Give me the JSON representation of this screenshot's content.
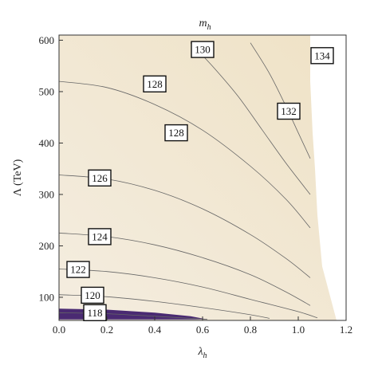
{
  "chart_data": {
    "type": "contour",
    "title": "m_h",
    "title_main": "m",
    "title_sub": "h",
    "xlabel_main": "λ",
    "xlabel_sub": "h",
    "ylabel": "Λ (TeV)",
    "xlim": [
      0.0,
      1.2
    ],
    "ylim": [
      55,
      610
    ],
    "x_ticks": [
      "0.0",
      "0.2",
      "0.4",
      "0.6",
      "0.8",
      "1.0",
      "1.2"
    ],
    "x_tick_values": [
      0.0,
      0.2,
      0.4,
      0.6,
      0.8,
      1.0,
      1.2
    ],
    "y_ticks": [
      "100",
      "200",
      "300",
      "400",
      "500",
      "600"
    ],
    "y_tick_values": [
      100,
      200,
      300,
      400,
      500,
      600
    ],
    "colors": {
      "background_light": "#f3ead9",
      "background_dark": "#efe0c2",
      "excluded_region": "#4a2a72",
      "contour_line": "#666666"
    },
    "contours": [
      {
        "label": "118",
        "points": [
          [
            0.0,
            70
          ],
          [
            0.2,
            68
          ],
          [
            0.4,
            63
          ],
          [
            0.55,
            59
          ],
          [
            0.62,
            57
          ]
        ]
      },
      {
        "label": "120",
        "points": [
          [
            0.0,
            105
          ],
          [
            0.2,
            101
          ],
          [
            0.4,
            92
          ],
          [
            0.6,
            80
          ],
          [
            0.8,
            66
          ],
          [
            0.88,
            59
          ]
        ]
      },
      {
        "label": "122",
        "points": [
          [
            0.0,
            155
          ],
          [
            0.2,
            150
          ],
          [
            0.4,
            138
          ],
          [
            0.6,
            120
          ],
          [
            0.8,
            96
          ],
          [
            1.0,
            72
          ],
          [
            1.08,
            60
          ]
        ]
      },
      {
        "label": "124",
        "points": [
          [
            0.0,
            225
          ],
          [
            0.2,
            218
          ],
          [
            0.4,
            202
          ],
          [
            0.6,
            177
          ],
          [
            0.8,
            144
          ],
          [
            0.95,
            110
          ],
          [
            1.05,
            84
          ]
        ]
      },
      {
        "label": "126",
        "points": [
          [
            0.0,
            338
          ],
          [
            0.2,
            330
          ],
          [
            0.4,
            308
          ],
          [
            0.6,
            272
          ],
          [
            0.8,
            222
          ],
          [
            0.95,
            175
          ],
          [
            1.05,
            138
          ]
        ]
      },
      {
        "label": "128",
        "points": [
          [
            0.0,
            520
          ],
          [
            0.2,
            508
          ],
          [
            0.4,
            475
          ],
          [
            0.6,
            425
          ],
          [
            0.8,
            355
          ],
          [
            0.95,
            290
          ],
          [
            1.05,
            235
          ]
        ]
      },
      {
        "label": "130",
        "points": [
          [
            0.55,
            595
          ],
          [
            0.65,
            545
          ],
          [
            0.75,
            490
          ],
          [
            0.85,
            425
          ],
          [
            0.95,
            360
          ],
          [
            1.05,
            300
          ]
        ]
      },
      {
        "label": "132",
        "points": [
          [
            0.8,
            595
          ],
          [
            0.88,
            535
          ],
          [
            0.95,
            470
          ],
          [
            1.0,
            420
          ],
          [
            1.05,
            370
          ]
        ]
      }
    ],
    "labels": [
      {
        "text": "118",
        "x": 0.15,
        "y": 70
      },
      {
        "text": "120",
        "x": 0.14,
        "y": 104
      },
      {
        "text": "122",
        "x": 0.08,
        "y": 154
      },
      {
        "text": "124",
        "x": 0.17,
        "y": 218
      },
      {
        "text": "126",
        "x": 0.17,
        "y": 332
      },
      {
        "text": "128",
        "x": 0.4,
        "y": 515
      },
      {
        "text": "128",
        "x": 0.49,
        "y": 420
      },
      {
        "text": "130",
        "x": 0.6,
        "y": 582
      },
      {
        "text": "132",
        "x": 0.96,
        "y": 462
      },
      {
        "text": "134",
        "x": 1.1,
        "y": 570
      }
    ],
    "boundary_right": [
      [
        1.05,
        610
      ],
      [
        1.05,
        520
      ],
      [
        1.06,
        420
      ],
      [
        1.07,
        350
      ],
      [
        1.08,
        260
      ],
      [
        1.1,
        160
      ],
      [
        1.14,
        90
      ],
      [
        1.16,
        55
      ]
    ],
    "excluded_band": [
      [
        0.0,
        78
      ],
      [
        0.2,
        76
      ],
      [
        0.4,
        70
      ],
      [
        0.55,
        63
      ],
      [
        0.62,
        57
      ],
      [
        0.0,
        57
      ]
    ]
  }
}
